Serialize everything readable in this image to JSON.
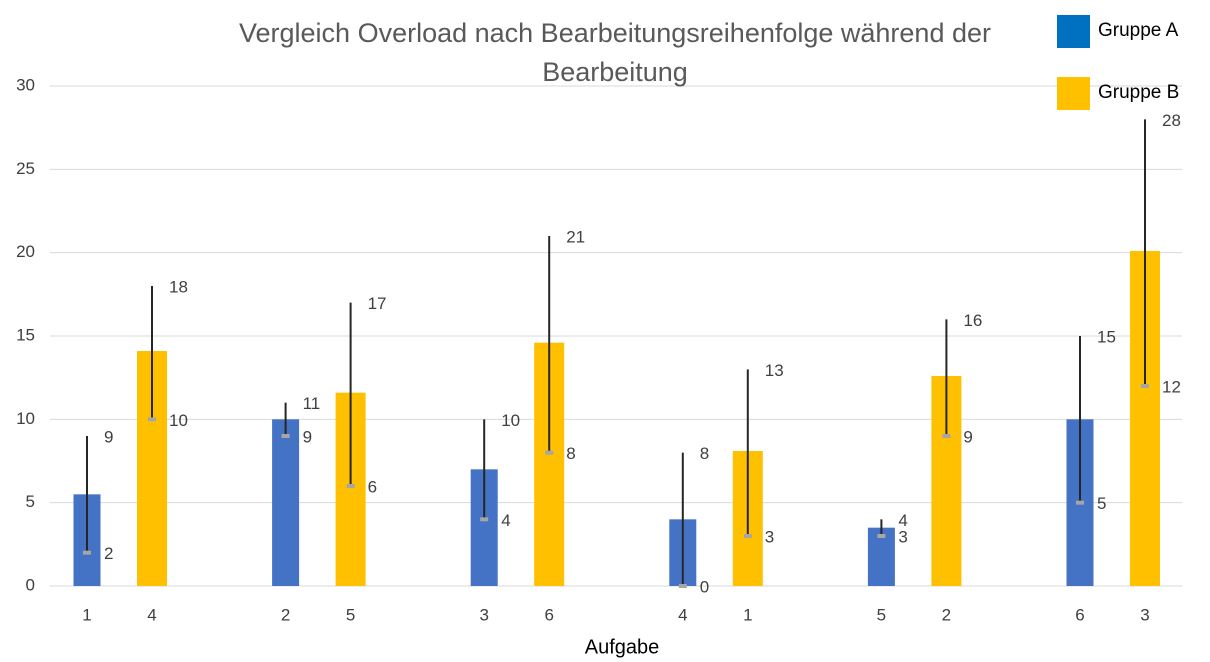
{
  "chart_data": {
    "type": "bar",
    "title": "Vergleich Overload nach Bearbeitungsreihenfolge während der Bearbeitung",
    "x_label": "Aufgabe",
    "ylim": [
      0,
      30
    ],
    "yticks": [
      0,
      5,
      10,
      15,
      20,
      25,
      30
    ],
    "grid": true,
    "series": [
      {
        "name": "Gruppe A",
        "color": "#4472c4",
        "legend_color": "#0070c0",
        "tasks": [
          1,
          2,
          3,
          4,
          5,
          6
        ],
        "values": [
          5.5,
          10,
          7,
          4,
          3.5,
          10
        ],
        "min": [
          2,
          9,
          4,
          0,
          3,
          5
        ],
        "max": [
          9,
          11,
          10,
          8,
          4,
          15
        ]
      },
      {
        "name": "Gruppe B",
        "color": "#ffc000",
        "legend_color": "#ffc000",
        "tasks": [
          4,
          5,
          6,
          1,
          2,
          3
        ],
        "values": [
          14.1,
          11.6,
          14.6,
          8.1,
          12.6,
          20.1
        ],
        "min": [
          10,
          6,
          8,
          3,
          9,
          12
        ],
        "max": [
          18,
          17,
          21,
          13,
          16,
          28
        ]
      }
    ]
  }
}
